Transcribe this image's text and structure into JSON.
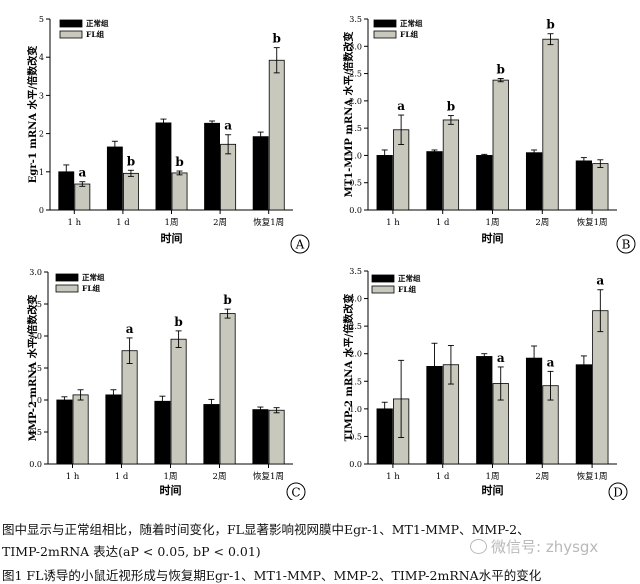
{
  "chart_data": [
    {
      "type": "bar",
      "panel": "A",
      "ylabel": "Egr-1 mRNA 水平/倍数改变",
      "xlabel": "时间",
      "categories": [
        "1 h",
        "1 d",
        "1周",
        "2周",
        "恢复1周"
      ],
      "ylim": [
        0,
        5
      ],
      "yticks": [
        "0",
        "1",
        "2",
        "3",
        "4",
        "5"
      ],
      "legend": [
        "正常组",
        "FL组"
      ],
      "series": [
        {
          "name": "正常组",
          "values": [
            1.0,
            1.65,
            2.28,
            2.27,
            1.92
          ],
          "errors": [
            0.18,
            0.15,
            0.1,
            0.06,
            0.12
          ]
        },
        {
          "name": "FL组",
          "values": [
            0.68,
            0.96,
            0.97,
            1.72,
            3.92
          ],
          "errors": [
            0.06,
            0.08,
            0.05,
            0.25,
            0.33
          ]
        }
      ],
      "annotations": [
        "a",
        "b",
        "b",
        "a",
        "b"
      ]
    },
    {
      "type": "bar",
      "panel": "B",
      "ylabel": "MT1-MMP mRNA 水平/倍数改变",
      "xlabel": "时间",
      "categories": [
        "1 h",
        "1 d",
        "1周",
        "2周",
        "恢复1周"
      ],
      "ylim": [
        0,
        3.5
      ],
      "yticks": [
        "0.0",
        "0.5",
        "1.0",
        "1.5",
        "2.0",
        "2.5",
        "3.0",
        "3.5"
      ],
      "legend": [
        "正常组",
        "FL组"
      ],
      "series": [
        {
          "name": "正常组",
          "values": [
            1.0,
            1.07,
            1.0,
            1.05,
            0.9
          ],
          "errors": [
            0.1,
            0.03,
            0.02,
            0.05,
            0.06
          ]
        },
        {
          "name": "FL组",
          "values": [
            1.47,
            1.65,
            2.38,
            3.13,
            0.85
          ],
          "errors": [
            0.27,
            0.08,
            0.03,
            0.1,
            0.07
          ]
        }
      ],
      "annotations": [
        "a",
        "b",
        "b",
        "b",
        ""
      ]
    },
    {
      "type": "bar",
      "panel": "C",
      "ylabel": "MMP-2 mRNA 水平/倍数改变",
      "xlabel": "时间",
      "categories": [
        "1 h",
        "1 d",
        "1周",
        "2周",
        "恢复1周"
      ],
      "ylim": [
        0,
        3.0
      ],
      "yticks": [
        "0.0",
        "0.5",
        "1.0",
        "1.5",
        "2.0",
        "2.5",
        "3.0"
      ],
      "legend": [
        "正常组",
        "FL组"
      ],
      "series": [
        {
          "name": "正常组",
          "values": [
            1.0,
            1.08,
            0.98,
            0.93,
            0.85
          ],
          "errors": [
            0.05,
            0.08,
            0.08,
            0.08,
            0.04
          ]
        },
        {
          "name": "FL组",
          "values": [
            1.08,
            1.77,
            1.95,
            2.35,
            0.84
          ],
          "errors": [
            0.08,
            0.2,
            0.13,
            0.07,
            0.04
          ]
        }
      ],
      "annotations": [
        "",
        "a",
        "b",
        "b",
        ""
      ]
    },
    {
      "type": "bar",
      "panel": "D",
      "ylabel": "TIMP-2 mRNA 水平/倍数改变",
      "xlabel": "时间",
      "categories": [
        "1 h",
        "1 d",
        "1周",
        "2周",
        "恢复1周"
      ],
      "ylim": [
        0,
        3.5
      ],
      "yticks": [
        "0.0",
        "0.5",
        "1.0",
        "1.5",
        "2.0",
        "2.5",
        "3.0",
        "3.5"
      ],
      "legend": [
        "正常组",
        "FL组"
      ],
      "series": [
        {
          "name": "正常组",
          "values": [
            1.0,
            1.77,
            1.95,
            1.92,
            1.8
          ],
          "errors": [
            0.12,
            0.42,
            0.05,
            0.22,
            0.16
          ]
        },
        {
          "name": "FL组",
          "values": [
            1.18,
            1.8,
            1.46,
            1.42,
            2.78
          ],
          "errors": [
            0.7,
            0.35,
            0.3,
            0.26,
            0.38
          ]
        }
      ],
      "annotations": [
        "",
        "",
        "a",
        "a",
        "a"
      ]
    }
  ],
  "caption": {
    "line1": "图中显示与正常组相比，随着时间变化，FL显著影响视网膜中Egr-1、MT1-MMP、MMP-2、",
    "line2": "TIMP-2mRNA 表达(aP < 0.05,  bP < 0.01)",
    "line3": "图1  FL诱导的小鼠近视形成与恢复期Egr-1、MT1-MMP、MMP-2、TIMP-2mRNA水平的变化"
  },
  "watermark": "微信号: zhysgx",
  "colors": {
    "normal": "#000000",
    "fl": "#c8c8bd",
    "axis": "#000000"
  }
}
